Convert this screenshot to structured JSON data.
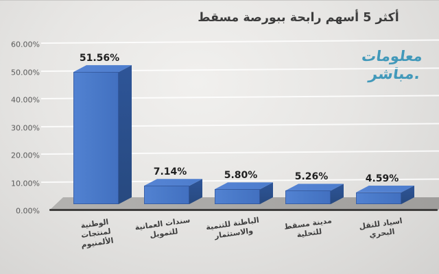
{
  "title": "أكثر 5 أسهم رابحة ببورصة مسقط",
  "watermark": {
    "line1": "معلومات",
    "line2": ".مباشر",
    "color": "#4299ba"
  },
  "chart_data": {
    "type": "bar",
    "style": "3d",
    "title": "أكثر 5 أسهم رابحة ببورصة مسقط",
    "xlabel": "",
    "ylabel": "",
    "ylim": [
      0,
      60
    ],
    "grid": true,
    "legend": "none",
    "bar_color_front": "#4a7ac9",
    "bar_color_top": "#4d7dcd",
    "bar_color_side": "#2e5598",
    "categories": [
      "الوطنية لمنتجات الألمنيوم",
      "سندات العمانية للتمويل",
      "الباطنة للتنمية والاستثمار",
      "مدينة مسقط للتحلية",
      "اسياد للنقل البحري"
    ],
    "category_lines": [
      [
        "الوطنية",
        "لمنتجات",
        "الألمنيوم"
      ],
      [
        "سندات العمانية",
        "للتمويل"
      ],
      [
        "الباطنة للتنمية",
        "والاستثمار"
      ],
      [
        "مدينة مسقط",
        "للتحلية"
      ],
      [
        "اسياد للنقل",
        "البحري"
      ]
    ],
    "values": [
      51.56,
      7.14,
      5.8,
      5.26,
      4.59
    ],
    "value_labels": [
      "51.56%",
      "7.14%",
      "5.80%",
      "5.26%",
      "4.59%"
    ],
    "y_ticks_values": [
      60,
      50,
      40,
      30,
      20,
      10,
      0
    ],
    "y_tick_labels": [
      "60.00%",
      "50.00%",
      "40.00%",
      "30.00%",
      "20.00%",
      "10.00%",
      "0.00%"
    ]
  }
}
